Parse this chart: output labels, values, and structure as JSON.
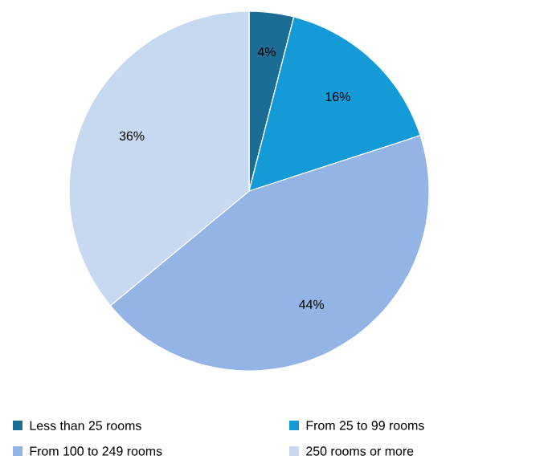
{
  "chart_data": {
    "type": "pie",
    "categories": [
      "Less than 25 rooms",
      "From 25 to 99 rooms",
      "From 100 to 249 rooms",
      "250 rooms or more"
    ],
    "values": [
      4,
      16,
      44,
      36
    ],
    "value_labels": [
      "4%",
      "16%",
      "44%",
      "36%"
    ],
    "colors": [
      "#1b6d96",
      "#149bd7",
      "#93b4e4",
      "#c6d9f0"
    ],
    "legend": "bottom"
  }
}
